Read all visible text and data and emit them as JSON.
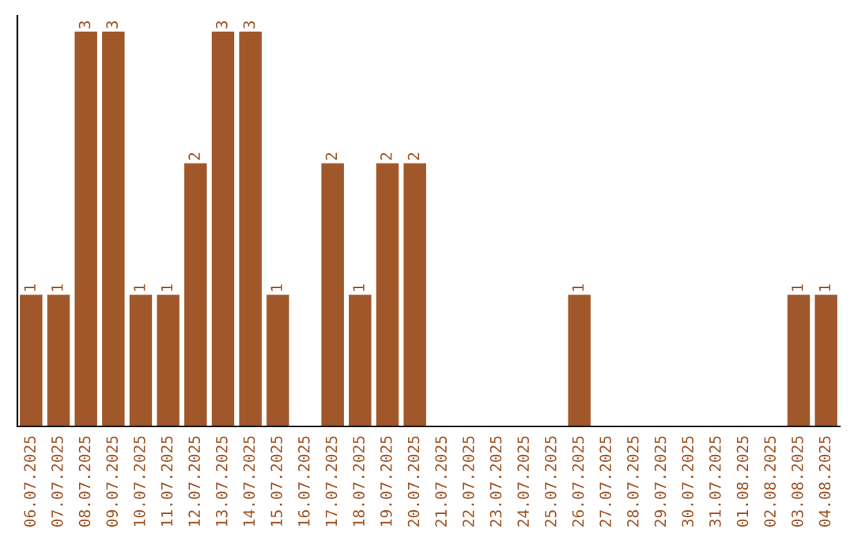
{
  "chart_data": {
    "type": "bar",
    "categories": [
      "06.07.2025",
      "07.07.2025",
      "08.07.2025",
      "09.07.2025",
      "10.07.2025",
      "11.07.2025",
      "12.07.2025",
      "13.07.2025",
      "14.07.2025",
      "15.07.2025",
      "16.07.2025",
      "17.07.2025",
      "18.07.2025",
      "19.07.2025",
      "20.07.2025",
      "21.07.2025",
      "22.07.2025",
      "23.07.2025",
      "24.07.2025",
      "25.07.2025",
      "26.07.2025",
      "27.07.2025",
      "28.07.2025",
      "29.07.2025",
      "30.07.2025",
      "31.07.2025",
      "01.08.2025",
      "02.08.2025",
      "03.08.2025",
      "04.08.2025"
    ],
    "values": [
      1,
      1,
      3,
      3,
      1,
      1,
      2,
      3,
      3,
      1,
      0,
      2,
      1,
      2,
      2,
      0,
      0,
      0,
      0,
      0,
      1,
      0,
      0,
      0,
      0,
      0,
      0,
      0,
      1,
      1
    ],
    "value_labels": [
      "1",
      "1",
      "3",
      "3",
      "1",
      "1",
      "2",
      "3",
      "3",
      "1",
      null,
      "2",
      "1",
      "2",
      "2",
      null,
      null,
      null,
      null,
      null,
      "1",
      null,
      null,
      null,
      null,
      null,
      null,
      null,
      "1",
      "1"
    ],
    "color": "#a0572a",
    "ylim": [
      0,
      3.12
    ],
    "tick_labels": "x",
    "grid": false
  }
}
